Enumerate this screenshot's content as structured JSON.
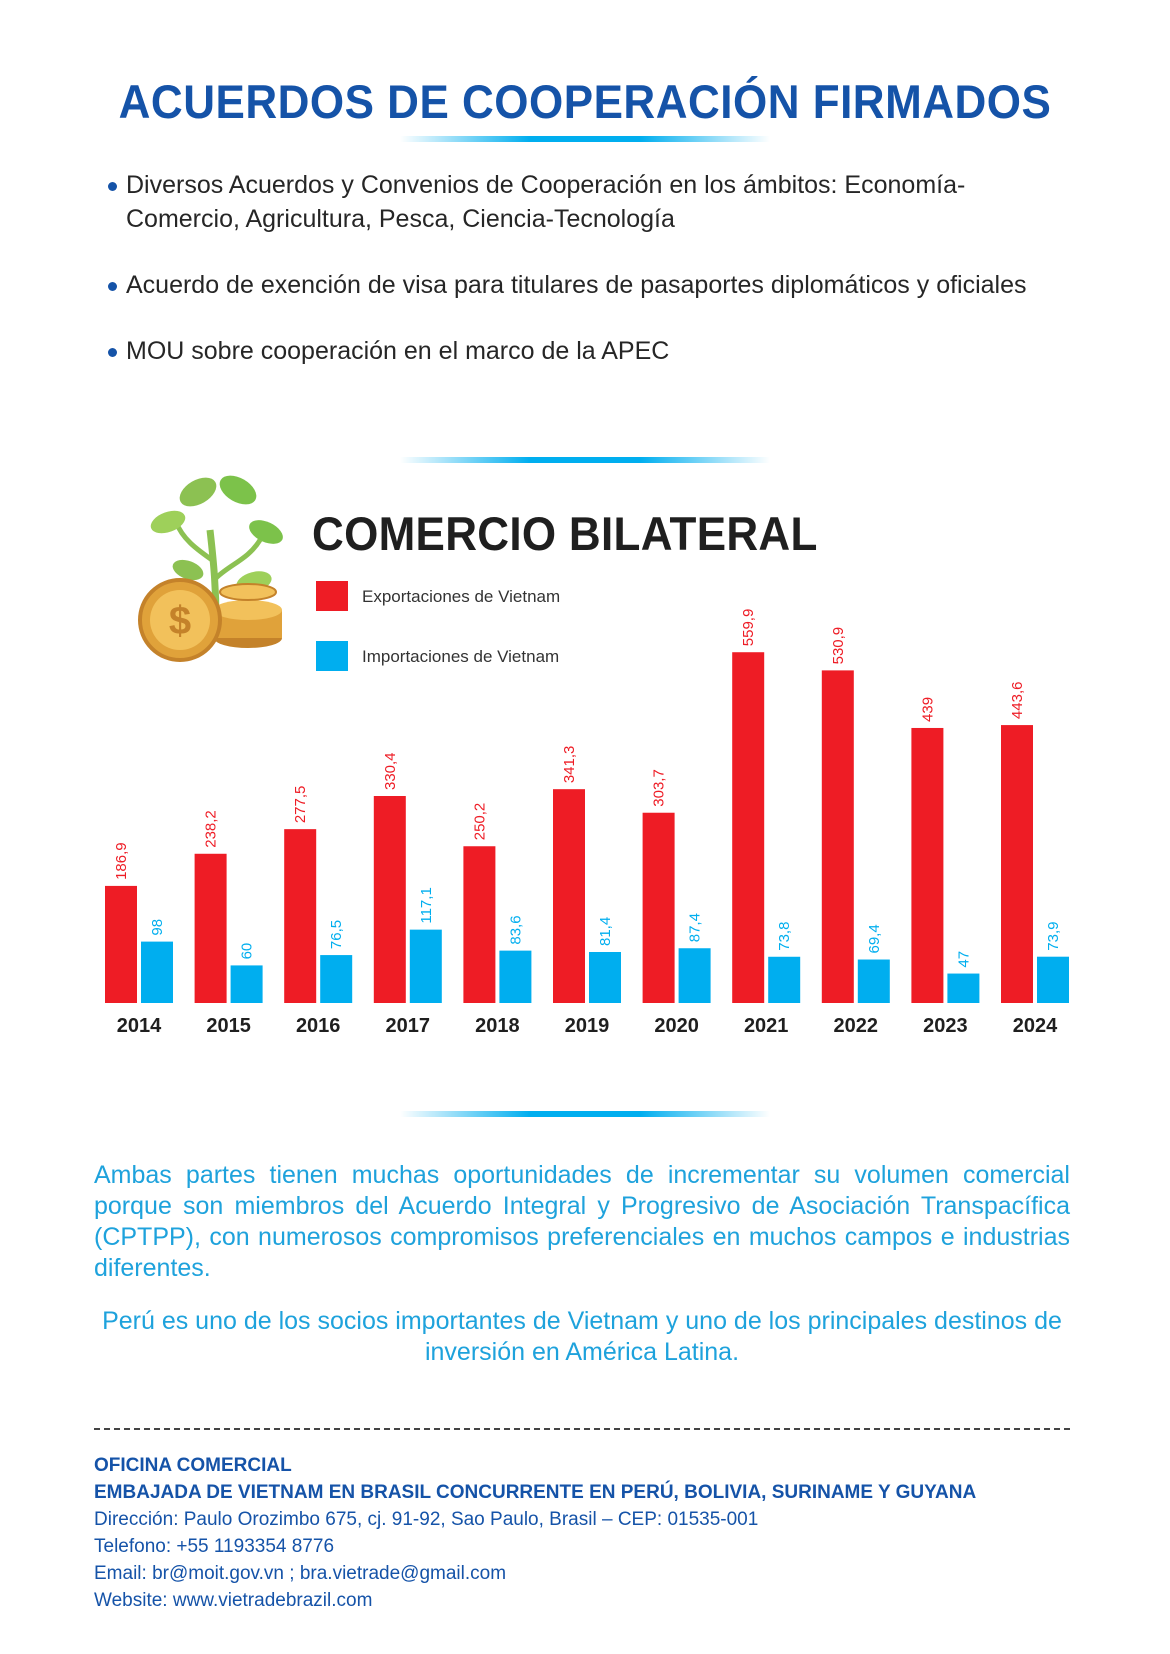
{
  "header": {
    "title": "ACUERDOS DE COOPERACIÓN FIRMADOS"
  },
  "bullets": [
    "Diversos Acuerdos y Convenios de Cooperación en los ámbitos: Economía-Comercio, Agricultura, Pesca, Ciencia-Tecnología",
    "Acuerdo de exención de visa para titulares de pasaportes diplomáticos y oficiales",
    "MOU sobre cooperación en el marco de la APEC"
  ],
  "chart_data": {
    "type": "bar",
    "title": "COMERCIO BILATERAL",
    "categories": [
      "2014",
      "2015",
      "2016",
      "2017",
      "2018",
      "2019",
      "2020",
      "2021",
      "2022",
      "2023",
      "2024"
    ],
    "series": [
      {
        "name": "Exportaciones de Vietnam",
        "color": "#ee1c25",
        "values": [
          186.9,
          238.2,
          277.5,
          330.4,
          250.2,
          341.3,
          303.7,
          559.9,
          530.9,
          439,
          443.6
        ],
        "labels": [
          "186,9",
          "238,2",
          "277,5",
          "330,4",
          "250,2",
          "341,3",
          "303,7",
          "559,9",
          "530,9",
          "439",
          "443,6"
        ]
      },
      {
        "name": "Importaciones de Vietnam",
        "color": "#00aeef",
        "values": [
          98,
          60,
          76.5,
          117.1,
          83.6,
          81.4,
          87.4,
          73.8,
          69.4,
          47,
          73.9
        ],
        "labels": [
          "98",
          "60",
          "76,5",
          "117,1",
          "83,6",
          "81,4",
          "87,4",
          "73,8",
          "69,4",
          "47",
          "73,9"
        ]
      }
    ],
    "xlabel": "",
    "ylabel": "",
    "ylim": [
      0,
      560
    ],
    "grid": false,
    "legend_placement": "top-left"
  },
  "paragraphs": {
    "main": "Ambas partes tienen muchas oportunidades de incrementar su volumen comercial porque son miembros del Acuerdo Integral y Progresivo de Asociación Transpacífica (CPTPP), con numerosos compromisos preferenciales en muchos campos e industrias diferentes.",
    "closing": "Perú es uno de los socios importantes de Vietnam y uno de los principales destinos de inversión en América Latina."
  },
  "footer": {
    "office": "OFICINA COMERCIAL",
    "embassy": "EMBAJADA DE VIETNAM EN BRASIL CONCURRENTE EN PERÚ, BOLIVIA, SURINAME Y GUYANA",
    "address": "Dirección: Paulo Orozimbo 675, cj. 91-92, Sao Paulo, Brasil – CEP: 01535-001",
    "phone": "Telefono: +55 1193354 8776",
    "email": "Email: br@moit.gov.vn ; bra.vietrade@gmail.com",
    "website": "Website: www.vietradebrazil.com"
  },
  "icons": {
    "decor": "money-plant-icon",
    "coin_color": "#e0a23a",
    "leaf_color": "#7cc24a"
  }
}
